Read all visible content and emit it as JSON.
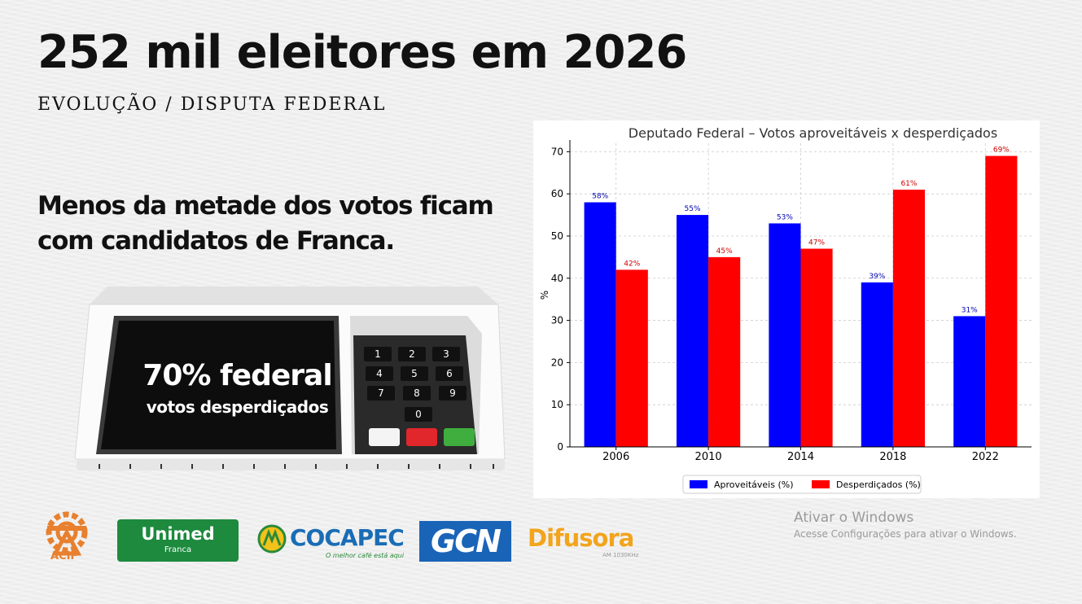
{
  "header": {
    "title": "252 mil eleitores em 2026",
    "subtitle": "EVOLUÇÃO / DISPUTA FEDERAL"
  },
  "headline": "Menos da metade dos votos ficam com candidatos de Franca.",
  "urna": {
    "big_text": "70%  federal",
    "small_text": "votos desperdiçados",
    "keys": [
      "1",
      "2",
      "3",
      "4",
      "5",
      "6",
      "7",
      "8",
      "9",
      "0"
    ]
  },
  "chart_data": {
    "type": "bar",
    "title": "Deputado Federal – Votos aproveitáveis x desperdiçados",
    "xlabel": "",
    "ylabel": "%",
    "ylim": [
      0,
      72
    ],
    "yticks": [
      0,
      10,
      20,
      30,
      40,
      50,
      60,
      70
    ],
    "grid": true,
    "legend_position": "bottom-center",
    "categories": [
      "2006",
      "2010",
      "2014",
      "2018",
      "2022"
    ],
    "series": [
      {
        "name": "Aproveitáveis (%)",
        "color": "#0000ff",
        "label_color": "#0000b0",
        "values": [
          58,
          55,
          53,
          39,
          31
        ],
        "labels": [
          "58%",
          "55%",
          "53%",
          "39%",
          "31%"
        ]
      },
      {
        "name": "Desperdiçados (%)",
        "color": "#ff0000",
        "label_color": "#cc0000",
        "values": [
          42,
          45,
          47,
          61,
          69
        ],
        "labels": [
          "42%",
          "45%",
          "47%",
          "61%",
          "69%"
        ]
      }
    ]
  },
  "logos": {
    "acif": "ACIF",
    "unimed_name": "Unimed",
    "unimed_sub": "Franca",
    "cocapec": "COCAPEC",
    "cocapec_slogan": "O melhor café está aqui",
    "gcn": "GCN",
    "difusora": "Difusora",
    "difusora_sub": "AM 1030KHz"
  },
  "watermark": {
    "title": "Ativar o Windows",
    "subtitle": "Acesse Configurações para ativar o Windows."
  }
}
